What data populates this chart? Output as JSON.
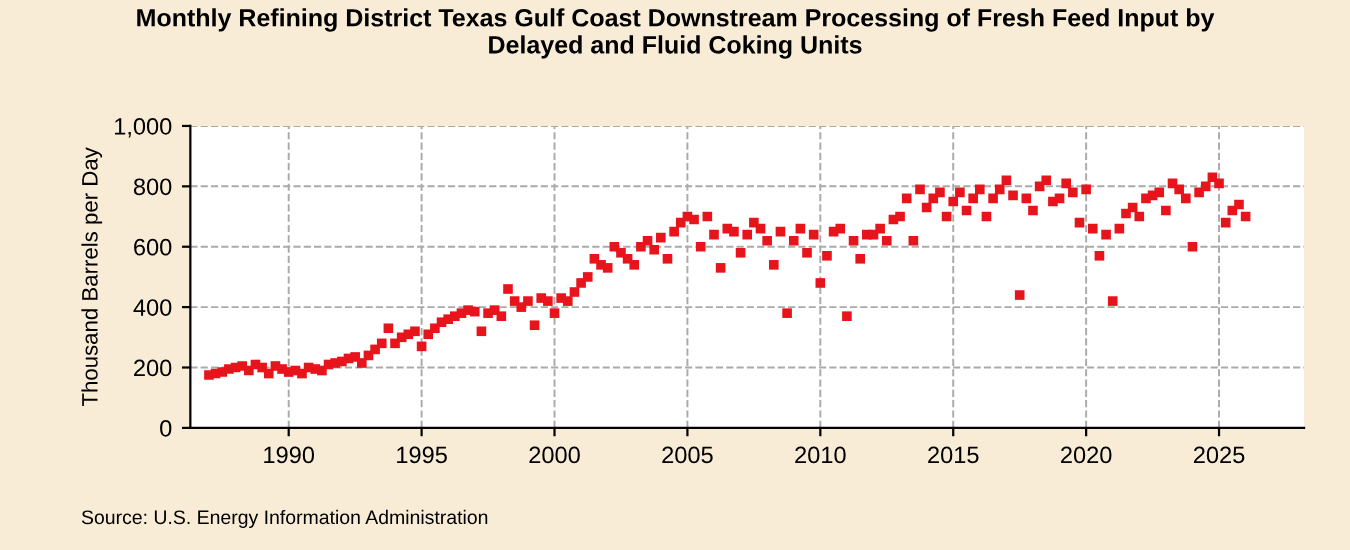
{
  "chart_data": {
    "type": "scatter",
    "title": "Monthly Refining District Texas Gulf Coast Downstream Processing of Fresh Feed Input by\nDelayed and Fluid Coking Units",
    "ylabel": "Thousand Barrels per Day",
    "annotations": [
      "Source: U.S. Energy Information Administration"
    ],
    "marker": "square",
    "grid": true,
    "x": [
      1987.0,
      1987.25,
      1987.5,
      1987.75,
      1988.0,
      1988.25,
      1988.5,
      1988.75,
      1989.0,
      1989.25,
      1989.5,
      1989.75,
      1990.0,
      1990.25,
      1990.5,
      1990.75,
      1991.0,
      1991.25,
      1991.5,
      1991.75,
      1992.0,
      1992.25,
      1992.5,
      1992.75,
      1993.0,
      1993.25,
      1993.5,
      1993.75,
      1994.0,
      1994.25,
      1994.5,
      1994.75,
      1995.0,
      1995.25,
      1995.5,
      1995.75,
      1996.0,
      1996.25,
      1996.5,
      1996.75,
      1997.0,
      1997.25,
      1997.5,
      1997.75,
      1998.0,
      1998.25,
      1998.5,
      1998.75,
      1999.0,
      1999.25,
      1999.5,
      1999.75,
      2000.0,
      2000.25,
      2000.5,
      2000.75,
      2001.0,
      2001.25,
      2001.5,
      2001.75,
      2002.0,
      2002.25,
      2002.5,
      2002.75,
      2003.0,
      2003.25,
      2003.5,
      2003.75,
      2004.0,
      2004.25,
      2004.5,
      2004.75,
      2005.0,
      2005.25,
      2005.5,
      2005.75,
      2006.0,
      2006.25,
      2006.5,
      2006.75,
      2007.0,
      2007.25,
      2007.5,
      2007.75,
      2008.0,
      2008.25,
      2008.5,
      2008.75,
      2009.0,
      2009.25,
      2009.5,
      2009.75,
      2010.0,
      2010.25,
      2010.5,
      2010.75,
      2011.0,
      2011.25,
      2011.5,
      2011.75,
      2012.0,
      2012.25,
      2012.5,
      2012.75,
      2013.0,
      2013.25,
      2013.5,
      2013.75,
      2014.0,
      2014.25,
      2014.5,
      2014.75,
      2015.0,
      2015.25,
      2015.5,
      2015.75,
      2016.0,
      2016.25,
      2016.5,
      2016.75,
      2017.0,
      2017.25,
      2017.5,
      2017.75,
      2018.0,
      2018.25,
      2018.5,
      2018.75,
      2019.0,
      2019.25,
      2019.5,
      2019.75,
      2020.0,
      2020.25,
      2020.5,
      2020.75,
      2021.0,
      2021.25,
      2021.5,
      2021.75,
      2022.0,
      2022.25,
      2022.5,
      2022.75,
      2023.0,
      2023.25,
      2023.5,
      2023.75,
      2024.0,
      2024.25,
      2024.5,
      2024.75,
      2025.0,
      2025.25,
      2025.5,
      2025.75,
      2026.0
    ],
    "series": [
      {
        "color": "#e8141b",
        "values": [
          175,
          180,
          185,
          195,
          200,
          205,
          190,
          210,
          200,
          180,
          205,
          195,
          185,
          190,
          180,
          200,
          195,
          190,
          210,
          215,
          220,
          230,
          235,
          215,
          240,
          260,
          280,
          330,
          280,
          300,
          310,
          320,
          270,
          310,
          330,
          350,
          360,
          370,
          380,
          390,
          385,
          320,
          380,
          390,
          370,
          460,
          420,
          400,
          420,
          340,
          430,
          420,
          380,
          430,
          420,
          450,
          480,
          500,
          560,
          540,
          530,
          600,
          580,
          560,
          540,
          600,
          620,
          590,
          630,
          560,
          650,
          680,
          700,
          690,
          600,
          700,
          640,
          530,
          660,
          650,
          580,
          640,
          680,
          660,
          620,
          540,
          650,
          380,
          620,
          660,
          580,
          640,
          480,
          570,
          650,
          660,
          370,
          620,
          560,
          640,
          640,
          660,
          620,
          690,
          700,
          760,
          620,
          790,
          730,
          760,
          780,
          700,
          750,
          780,
          720,
          760,
          790,
          700,
          760,
          790,
          820,
          770,
          440,
          760,
          720,
          800,
          820,
          750,
          760,
          810,
          780,
          680,
          790,
          660,
          570,
          640,
          420,
          660,
          710,
          730,
          700,
          760,
          770,
          780,
          720,
          810,
          790,
          760,
          600,
          780,
          800,
          830,
          810,
          680,
          720,
          740,
          700
        ]
      }
    ],
    "xlim": [
      1986.3,
      2028.2
    ],
    "xticks": [
      1990,
      1995,
      2000,
      2005,
      2010,
      2015,
      2020,
      2025
    ],
    "ylim": [
      0,
      1000
    ],
    "yticks": [
      0,
      200,
      400,
      600,
      800,
      {
        "value": 1000,
        "label": "1,000"
      }
    ]
  }
}
